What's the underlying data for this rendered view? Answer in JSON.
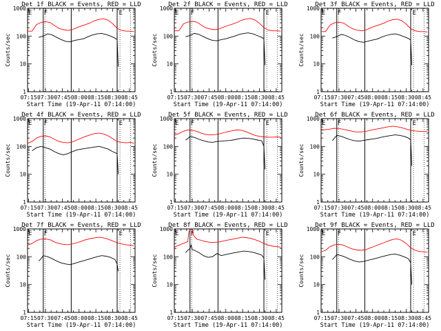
{
  "figure": {
    "x_tick_labels": [
      "07:15",
      "07:30",
      "07:45",
      "08:00",
      "08:15",
      "08:30",
      "08:45"
    ],
    "y_tick_labels": [
      "1",
      "10",
      "100",
      "1000"
    ],
    "x_axis_label": "Start Time (19-Apr-11 07:14:00)",
    "y_axis_label": "Counts/sec",
    "colors": {
      "events": "#000000",
      "lld": "#ff0000",
      "axes": "#000000"
    },
    "markers": {
      "start_label": "E",
      "second_label": "F"
    },
    "vertical_lines_min": [
      14,
      39,
      80
    ],
    "dotted_lines_min": [
      15.5,
      82.5,
      92
    ]
  },
  "chart_data": [
    {
      "type": "line",
      "title": "Det 1f BLACK = Events, RED = LLD",
      "xlim": [
        0,
        96
      ],
      "ylim": [
        1,
        1000
      ],
      "yscale": "log",
      "xlabel": "Start Time (19-Apr-11 07:14:00)",
      "ylabel": "Counts/sec",
      "series": [
        {
          "name": "BLACK = Events",
          "color": "#000000",
          "x": [
            10,
            12,
            14,
            18,
            22,
            26,
            30,
            34,
            38,
            42,
            46,
            50,
            54,
            58,
            62,
            66,
            70,
            74,
            78,
            80,
            81
          ],
          "y": [
            90,
            95,
            100,
            120,
            110,
            90,
            75,
            65,
            62,
            70,
            75,
            80,
            95,
            110,
            120,
            125,
            115,
            100,
            85,
            75,
            8
          ]
        },
        {
          "name": "RED = LLD",
          "color": "#ff0000",
          "x": [
            0,
            4,
            8,
            12,
            16,
            20,
            24,
            28,
            32,
            36,
            40,
            44,
            48,
            52,
            56,
            60,
            64,
            68,
            72,
            76,
            80,
            84,
            88,
            92,
            95
          ],
          "y": [
            150,
            150,
            260,
            310,
            330,
            310,
            240,
            190,
            170,
            160,
            170,
            200,
            230,
            260,
            300,
            360,
            400,
            420,
            370,
            280,
            190,
            160,
            150,
            150,
            145
          ]
        }
      ]
    },
    {
      "type": "line",
      "title": "Det 2f BLACK = Events, RED = LLD",
      "xlim": [
        0,
        96
      ],
      "ylim": [
        1,
        1000
      ],
      "yscale": "log",
      "xlabel": "Start Time (19-Apr-11 07:14:00)",
      "ylabel": "Counts/sec",
      "series": [
        {
          "name": "BLACK = Events",
          "color": "#000000",
          "x": [
            10,
            12,
            14,
            18,
            22,
            26,
            30,
            34,
            38,
            42,
            46,
            50,
            54,
            58,
            62,
            66,
            70,
            74,
            78,
            80,
            81
          ],
          "y": [
            95,
            100,
            105,
            125,
            115,
            95,
            80,
            70,
            68,
            75,
            80,
            90,
            100,
            115,
            125,
            130,
            120,
            105,
            90,
            80,
            9
          ]
        },
        {
          "name": "RED = LLD",
          "color": "#ff0000",
          "x": [
            0,
            4,
            8,
            12,
            16,
            20,
            24,
            28,
            32,
            36,
            40,
            44,
            48,
            52,
            56,
            60,
            64,
            68,
            72,
            76,
            80,
            84,
            88,
            92,
            95
          ],
          "y": [
            155,
            155,
            270,
            320,
            340,
            320,
            250,
            200,
            180,
            170,
            180,
            210,
            240,
            270,
            310,
            370,
            410,
            430,
            380,
            290,
            200,
            165,
            155,
            155,
            150
          ]
        }
      ]
    },
    {
      "type": "line",
      "title": "Det 3f BLACK = Events, RED = LLD",
      "xlim": [
        0,
        96
      ],
      "ylim": [
        1,
        1000
      ],
      "yscale": "log",
      "xlabel": "Start Time (19-Apr-11 07:14:00)",
      "ylabel": "Counts/sec",
      "series": [
        {
          "name": "BLACK = Events",
          "color": "#000000",
          "x": [
            10,
            12,
            14,
            18,
            22,
            26,
            30,
            34,
            38,
            42,
            46,
            50,
            54,
            58,
            62,
            66,
            70,
            74,
            78,
            80,
            81
          ],
          "y": [
            85,
            90,
            95,
            115,
            105,
            88,
            72,
            63,
            60,
            66,
            72,
            78,
            92,
            105,
            115,
            120,
            110,
            95,
            82,
            72,
            9
          ]
        },
        {
          "name": "RED = LLD",
          "color": "#ff0000",
          "x": [
            0,
            4,
            8,
            12,
            16,
            20,
            24,
            28,
            32,
            36,
            40,
            44,
            48,
            52,
            56,
            60,
            64,
            68,
            72,
            76,
            80,
            84,
            88,
            92,
            95
          ],
          "y": [
            145,
            145,
            250,
            300,
            315,
            295,
            230,
            185,
            165,
            155,
            165,
            195,
            225,
            255,
            290,
            350,
            390,
            405,
            360,
            270,
            185,
            155,
            145,
            145,
            140
          ]
        }
      ]
    },
    {
      "type": "line",
      "title": "Det 4f BLACK = Events, RED = LLD",
      "xlim": [
        0,
        96
      ],
      "ylim": [
        1,
        1000
      ],
      "yscale": "log",
      "xlabel": "Start Time (19-Apr-11 07:14:00)",
      "ylabel": "Counts/sec",
      "series": [
        {
          "name": "BLACK = Events",
          "color": "#000000",
          "x": [
            4,
            8,
            12,
            16,
            20,
            24,
            28,
            32,
            36,
            40,
            44,
            48,
            52,
            56,
            60,
            64,
            68,
            72,
            76,
            80,
            81
          ],
          "y": [
            70,
            90,
            100,
            90,
            80,
            65,
            55,
            50,
            55,
            65,
            75,
            80,
            85,
            90,
            95,
            100,
            90,
            80,
            65,
            55,
            10
          ]
        },
        {
          "name": "RED = LLD",
          "color": "#ff0000",
          "x": [
            0,
            4,
            8,
            12,
            16,
            20,
            24,
            28,
            32,
            36,
            40,
            44,
            48,
            52,
            56,
            60,
            64,
            68,
            72,
            76,
            80,
            84,
            88,
            92,
            95
          ],
          "y": [
            130,
            150,
            200,
            230,
            240,
            220,
            180,
            150,
            140,
            135,
            145,
            170,
            200,
            230,
            260,
            290,
            300,
            280,
            240,
            190,
            150,
            140,
            135,
            140,
            130
          ]
        }
      ]
    },
    {
      "type": "line",
      "title": "Det 5f BLACK = Events, RED = LLD",
      "xlim": [
        0,
        96
      ],
      "ylim": [
        1,
        1000
      ],
      "yscale": "log",
      "xlabel": "Start Time (19-Apr-11 07:14:00)",
      "ylabel": "Counts/sec",
      "series": [
        {
          "name": "BLACK = Events",
          "color": "#000000",
          "x": [
            10,
            12,
            14,
            18,
            22,
            26,
            30,
            34,
            38,
            42,
            46,
            50,
            54,
            58,
            62,
            66,
            70,
            74,
            78,
            80,
            81
          ],
          "y": [
            170,
            190,
            230,
            210,
            180,
            160,
            145,
            140,
            150,
            155,
            160,
            165,
            175,
            190,
            200,
            195,
            185,
            170,
            160,
            100,
            15
          ]
        },
        {
          "name": "RED = LLD",
          "color": "#ff0000",
          "x": [
            0,
            4,
            8,
            12,
            16,
            20,
            24,
            28,
            32,
            36,
            40,
            44,
            48,
            52,
            56,
            60,
            64,
            68,
            72,
            76,
            80,
            84,
            88,
            92,
            95
          ],
          "y": [
            250,
            290,
            350,
            390,
            380,
            350,
            300,
            270,
            260,
            265,
            280,
            310,
            340,
            370,
            390,
            380,
            340,
            290,
            250,
            230,
            220,
            215,
            215,
            220,
            215
          ]
        }
      ]
    },
    {
      "type": "line",
      "title": "Det 6f BLACK = Events, RED = LLD",
      "xlim": [
        0,
        96
      ],
      "ylim": [
        1,
        1000
      ],
      "yscale": "log",
      "xlabel": "Start Time (19-Apr-11 07:14:00)",
      "ylabel": "Counts/sec",
      "series": [
        {
          "name": "BLACK = Events",
          "color": "#000000",
          "x": [
            10,
            12,
            14,
            18,
            22,
            26,
            30,
            34,
            38,
            42,
            46,
            50,
            54,
            58,
            62,
            66,
            70,
            74,
            78,
            80,
            81
          ],
          "y": [
            160,
            200,
            250,
            230,
            200,
            175,
            160,
            155,
            165,
            175,
            185,
            195,
            215,
            230,
            245,
            260,
            250,
            230,
            200,
            170,
            20
          ]
        },
        {
          "name": "RED = LLD",
          "color": "#ff0000",
          "x": [
            0,
            4,
            8,
            12,
            16,
            20,
            24,
            28,
            32,
            36,
            40,
            44,
            48,
            52,
            56,
            60,
            64,
            68,
            72,
            76,
            80,
            84,
            88,
            92,
            95
          ],
          "y": [
            380,
            400,
            420,
            450,
            440,
            410,
            380,
            350,
            330,
            335,
            350,
            380,
            410,
            440,
            470,
            510,
            530,
            510,
            470,
            420,
            380,
            360,
            350,
            350,
            340
          ]
        }
      ]
    },
    {
      "type": "line",
      "title": "Det 7f BLACK = Events, RED = LLD",
      "xlim": [
        0,
        96
      ],
      "ylim": [
        1,
        1000
      ],
      "yscale": "log",
      "xlabel": "Start Time (19-Apr-11 07:14:00)",
      "ylabel": "Counts/sec",
      "series": [
        {
          "name": "BLACK = Events",
          "color": "#000000",
          "x": [
            10,
            12,
            14,
            18,
            22,
            26,
            30,
            34,
            38,
            42,
            46,
            50,
            54,
            58,
            62,
            66,
            70,
            74,
            78,
            80,
            81
          ],
          "y": [
            70,
            85,
            110,
            100,
            85,
            70,
            60,
            55,
            52,
            58,
            65,
            72,
            80,
            90,
            100,
            110,
            105,
            95,
            80,
            55,
            30
          ]
        },
        {
          "name": "RED = LLD",
          "color": "#ff0000",
          "x": [
            0,
            4,
            8,
            12,
            16,
            20,
            24,
            28,
            32,
            36,
            40,
            44,
            48,
            52,
            56,
            60,
            64,
            68,
            72,
            76,
            80,
            84,
            88,
            92,
            95
          ],
          "y": [
            260,
            300,
            380,
            430,
            440,
            410,
            340,
            300,
            280,
            270,
            290,
            320,
            360,
            410,
            450,
            480,
            500,
            480,
            430,
            370,
            320,
            290,
            270,
            260,
            250
          ]
        }
      ]
    },
    {
      "type": "line",
      "title": "Det 8f BLACK = Events, RED = LLD",
      "xlim": [
        0,
        96
      ],
      "ylim": [
        1,
        1000
      ],
      "yscale": "log",
      "xlabel": "Start Time (19-Apr-11 07:14:00)",
      "ylabel": "Counts/sec",
      "series": [
        {
          "name": "BLACK = Events",
          "color": "#000000",
          "x": [
            10,
            12,
            14,
            15,
            16,
            18,
            22,
            26,
            30,
            34,
            38,
            42,
            46,
            50,
            54,
            58,
            62,
            66,
            70,
            74,
            78,
            80,
            81
          ],
          "y": [
            140,
            170,
            200,
            260,
            180,
            170,
            140,
            110,
            95,
            100,
            130,
            110,
            120,
            130,
            140,
            150,
            160,
            155,
            145,
            130,
            115,
            90,
            15
          ]
        },
        {
          "name": "RED = LLD",
          "color": "#ff0000",
          "x": [
            0,
            4,
            8,
            12,
            13,
            14,
            15,
            16,
            17,
            20,
            24,
            28,
            32,
            36,
            40,
            44,
            48,
            52,
            56,
            60,
            64,
            68,
            72,
            76,
            80,
            84,
            88,
            92,
            95
          ],
          "y": [
            220,
            260,
            300,
            350,
            800,
            900,
            1000,
            900,
            600,
            430,
            390,
            350,
            330,
            330,
            340,
            370,
            400,
            430,
            460,
            500,
            490,
            460,
            410,
            360,
            300,
            260,
            240,
            230,
            220
          ]
        }
      ]
    },
    {
      "type": "line",
      "title": "Det 9f BLACK = Events, RED = LLD",
      "xlim": [
        0,
        96
      ],
      "ylim": [
        1,
        1000
      ],
      "yscale": "log",
      "xlabel": "Start Time (19-Apr-11 07:14:00)",
      "ylabel": "Counts/sec",
      "series": [
        {
          "name": "BLACK = Events",
          "color": "#000000",
          "x": [
            10,
            12,
            14,
            18,
            22,
            26,
            30,
            34,
            38,
            42,
            46,
            50,
            54,
            58,
            62,
            66,
            70,
            74,
            78,
            80,
            81
          ],
          "y": [
            80,
            95,
            120,
            110,
            95,
            80,
            70,
            65,
            68,
            75,
            82,
            90,
            100,
            110,
            120,
            125,
            115,
            100,
            85,
            60,
            10
          ]
        },
        {
          "name": "RED = LLD",
          "color": "#ff0000",
          "x": [
            0,
            4,
            8,
            12,
            16,
            20,
            24,
            28,
            32,
            36,
            40,
            44,
            48,
            52,
            56,
            60,
            64,
            68,
            72,
            76,
            80,
            84,
            88,
            92,
            95
          ],
          "y": [
            150,
            170,
            230,
            270,
            280,
            260,
            220,
            190,
            175,
            170,
            180,
            210,
            240,
            280,
            320,
            370,
            420,
            440,
            390,
            300,
            210,
            170,
            155,
            150,
            145
          ]
        }
      ]
    }
  ]
}
